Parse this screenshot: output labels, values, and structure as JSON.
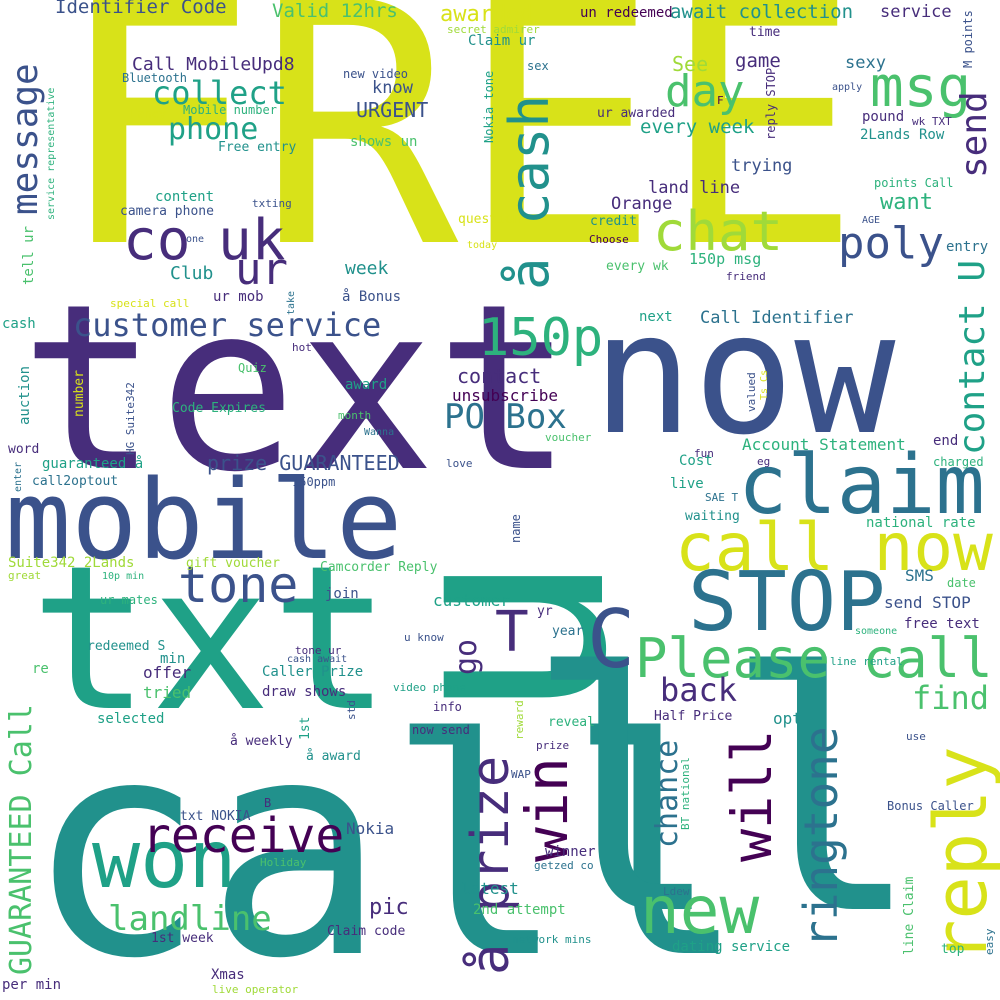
{
  "palette": {
    "yellow": "#d8e219",
    "lime": "#a0da39",
    "green": "#4ac16d",
    "mint": "#2db27d",
    "teal": "#1fa187",
    "sea": "#21918c",
    "blue": "#2c728e",
    "navy": "#3b528b",
    "indigo": "#472d7b",
    "purple": "#440154",
    "background": "#ffffff"
  },
  "words": [
    {
      "text": "FREE",
      "color": "yellow"
    },
    {
      "text": "text",
      "color": "indigo"
    },
    {
      "text": "now",
      "color": "navy"
    },
    {
      "text": "call",
      "color": "sea"
    },
    {
      "text": "txt",
      "color": "teal"
    },
    {
      "text": "u",
      "color": "teal"
    },
    {
      "text": "ll",
      "color": "sea"
    },
    {
      "text": "mobile",
      "color": "navy"
    },
    {
      "text": "claim",
      "color": "blue"
    },
    {
      "text": "call now",
      "color": "yellow"
    },
    {
      "text": "STOP",
      "color": "blue"
    },
    {
      "text": "Please call",
      "color": "green"
    },
    {
      "text": "won",
      "color": "teal"
    },
    {
      "text": "new",
      "color": "green"
    },
    {
      "text": "reply",
      "color": "yellow"
    },
    {
      "text": "ringtone",
      "color": "blue"
    },
    {
      "text": "will",
      "color": "purple"
    },
    {
      "text": "win",
      "color": "purple"
    },
    {
      "text": "å prize",
      "color": "indigo"
    },
    {
      "text": "receive",
      "color": "purple"
    },
    {
      "text": "tone",
      "color": "navy"
    },
    {
      "text": "T",
      "color": "indigo"
    },
    {
      "text": "C",
      "color": "navy"
    },
    {
      "text": "go",
      "color": "indigo"
    },
    {
      "text": "chat",
      "color": "lime"
    },
    {
      "text": "å cash",
      "color": "sea"
    },
    {
      "text": "co",
      "color": "indigo"
    },
    {
      "text": "uk",
      "color": "indigo"
    },
    {
      "text": "ur",
      "color": "indigo"
    },
    {
      "text": "msg",
      "color": "green"
    },
    {
      "text": "day",
      "color": "green"
    },
    {
      "text": "poly",
      "color": "navy"
    },
    {
      "text": "send",
      "color": "indigo"
    },
    {
      "text": "contact U",
      "color": "teal"
    },
    {
      "text": "150p",
      "color": "mint"
    },
    {
      "text": "PO Box",
      "color": "blue"
    },
    {
      "text": "customer service",
      "color": "navy"
    },
    {
      "text": "message",
      "color": "navy"
    },
    {
      "text": "collect",
      "color": "teal"
    },
    {
      "text": "phone",
      "color": "teal"
    },
    {
      "text": "landline",
      "color": "green"
    },
    {
      "text": "GUARANTEED Call",
      "color": "green"
    },
    {
      "text": "back",
      "color": "indigo"
    },
    {
      "text": "find",
      "color": "green"
    },
    {
      "text": "chance",
      "color": "blue"
    },
    {
      "text": "prize GUARANTEED",
      "color": "navy"
    },
    {
      "text": "Identifier Code",
      "color": "navy"
    },
    {
      "text": "Valid 12hrs",
      "color": "green"
    },
    {
      "text": "awarded",
      "color": "yellow"
    },
    {
      "text": "await collection",
      "color": "sea"
    },
    {
      "text": "service",
      "color": "indigo"
    },
    {
      "text": "un redeemed",
      "color": "purple"
    },
    {
      "text": "secret admirer",
      "color": "lime"
    },
    {
      "text": "Claim ur",
      "color": "sea"
    },
    {
      "text": "Call MobileUpd8",
      "color": "indigo"
    },
    {
      "text": "Bluetooth",
      "color": "blue"
    },
    {
      "text": "new video",
      "color": "navy"
    },
    {
      "text": "sex",
      "color": "blue"
    },
    {
      "text": "See",
      "color": "lime"
    },
    {
      "text": "game",
      "color": "indigo"
    },
    {
      "text": "sexy",
      "color": "blue"
    },
    {
      "text": "know",
      "color": "navy"
    },
    {
      "text": "URGENT",
      "color": "navy"
    },
    {
      "text": "Nokia tone",
      "color": "teal"
    },
    {
      "text": "Mobile number",
      "color": "mint"
    },
    {
      "text": "Fancy",
      "color": "yellow"
    },
    {
      "text": "Free entry",
      "color": "sea"
    },
    {
      "text": "shows un",
      "color": "green"
    },
    {
      "text": "ur awarded",
      "color": "indigo"
    },
    {
      "text": "every week",
      "color": "teal"
    },
    {
      "text": "F",
      "color": "purple"
    },
    {
      "text": "reply STOP",
      "color": "indigo"
    },
    {
      "text": "time",
      "color": "indigo"
    },
    {
      "text": "apply",
      "color": "navy"
    },
    {
      "text": "pound",
      "color": "indigo"
    },
    {
      "text": "wk TXT",
      "color": "indigo"
    },
    {
      "text": "M points",
      "color": "navy"
    },
    {
      "text": "2Lands Row",
      "color": "sea"
    },
    {
      "text": "trying",
      "color": "navy"
    },
    {
      "text": "content",
      "color": "teal"
    },
    {
      "text": "camera phone",
      "color": "navy"
    },
    {
      "text": "txting",
      "color": "navy"
    },
    {
      "text": "one",
      "color": "navy"
    },
    {
      "text": "land line",
      "color": "indigo"
    },
    {
      "text": "Orange",
      "color": "indigo"
    },
    {
      "text": "want",
      "color": "mint"
    },
    {
      "text": "points Call",
      "color": "mint"
    },
    {
      "text": "question",
      "color": "yellow"
    },
    {
      "text": "credit",
      "color": "sea"
    },
    {
      "text": "Choose",
      "color": "purple"
    },
    {
      "text": "AGE",
      "color": "navy"
    },
    {
      "text": "entry",
      "color": "blue"
    },
    {
      "text": "today",
      "color": "yellow"
    },
    {
      "text": "150p msg",
      "color": "mint"
    },
    {
      "text": "every wk",
      "color": "green"
    },
    {
      "text": "friend",
      "color": "indigo"
    },
    {
      "text": "Club",
      "color": "sea"
    },
    {
      "text": "week",
      "color": "sea"
    },
    {
      "text": "ur mob",
      "color": "indigo"
    },
    {
      "text": "å Bonus",
      "color": "navy"
    },
    {
      "text": "special call",
      "color": "yellow"
    },
    {
      "text": "take",
      "color": "blue"
    },
    {
      "text": "tell ur",
      "color": "green"
    },
    {
      "text": "service representative",
      "color": "mint"
    },
    {
      "text": "cash",
      "color": "teal"
    },
    {
      "text": "next",
      "color": "teal"
    },
    {
      "text": "Call Identifier",
      "color": "blue"
    },
    {
      "text": "hot",
      "color": "indigo"
    },
    {
      "text": "contact",
      "color": "indigo"
    },
    {
      "text": "unsubscribe",
      "color": "purple"
    },
    {
      "text": "Quiz",
      "color": "green"
    },
    {
      "text": "award",
      "color": "teal"
    },
    {
      "text": "month",
      "color": "green"
    },
    {
      "text": "Code Expires",
      "color": "mint"
    },
    {
      "text": "HG Suite342",
      "color": "navy"
    },
    {
      "text": "auction",
      "color": "sea"
    },
    {
      "text": "number",
      "color": "yellow"
    },
    {
      "text": "valued",
      "color": "navy"
    },
    {
      "text": "Ts Cs",
      "color": "yellow"
    },
    {
      "text": "Wanna",
      "color": "blue"
    },
    {
      "text": "voucher",
      "color": "green"
    },
    {
      "text": "Account Statement",
      "color": "mint"
    },
    {
      "text": "end",
      "color": "indigo"
    },
    {
      "text": "word",
      "color": "indigo"
    },
    {
      "text": "guaranteed å",
      "color": "teal"
    },
    {
      "text": "love",
      "color": "navy"
    },
    {
      "text": "fun",
      "color": "indigo"
    },
    {
      "text": "eg",
      "color": "indigo"
    },
    {
      "text": "charged",
      "color": "mint"
    },
    {
      "text": "Cost",
      "color": "teal"
    },
    {
      "text": "enter",
      "color": "blue"
    },
    {
      "text": "call2optout",
      "color": "blue"
    },
    {
      "text": "150ppm",
      "color": "navy"
    },
    {
      "text": "live",
      "color": "teal"
    },
    {
      "text": "SAE T",
      "color": "blue"
    },
    {
      "text": "waiting",
      "color": "sea"
    },
    {
      "text": "national rate",
      "color": "mint"
    },
    {
      "text": "name",
      "color": "navy"
    },
    {
      "text": "Suite342 2Lands",
      "color": "lime"
    },
    {
      "text": "gift voucher",
      "color": "lime"
    },
    {
      "text": "Camcorder Reply",
      "color": "green"
    },
    {
      "text": "great",
      "color": "lime"
    },
    {
      "text": "10p min",
      "color": "mint"
    },
    {
      "text": "SMS",
      "color": "blue"
    },
    {
      "text": "ur mates",
      "color": "mint"
    },
    {
      "text": "join",
      "color": "navy"
    },
    {
      "text": "customer",
      "color": "teal"
    },
    {
      "text": "yr",
      "color": "indigo"
    },
    {
      "text": "send STOP",
      "color": "navy"
    },
    {
      "text": "date",
      "color": "green"
    },
    {
      "text": "free text",
      "color": "indigo"
    },
    {
      "text": "u know",
      "color": "navy"
    },
    {
      "text": "someone",
      "color": "mint"
    },
    {
      "text": "redeemed S",
      "color": "sea"
    },
    {
      "text": "tone ur",
      "color": "indigo"
    },
    {
      "text": "cash await",
      "color": "navy"
    },
    {
      "text": "year",
      "color": "blue"
    },
    {
      "text": "line rental",
      "color": "teal"
    },
    {
      "text": "re",
      "color": "green"
    },
    {
      "text": "min",
      "color": "sea"
    },
    {
      "text": "offer",
      "color": "indigo"
    },
    {
      "text": "Caller Prize",
      "color": "sea"
    },
    {
      "text": "tried",
      "color": "green"
    },
    {
      "text": "draw shows",
      "color": "indigo"
    },
    {
      "text": "video phone",
      "color": "teal"
    },
    {
      "text": "std",
      "color": "navy"
    },
    {
      "text": "info",
      "color": "indigo"
    },
    {
      "text": "reward",
      "color": "lime"
    },
    {
      "text": "opt",
      "color": "sea"
    },
    {
      "text": "selected",
      "color": "teal"
    },
    {
      "text": "1st",
      "color": "teal"
    },
    {
      "text": "reveal",
      "color": "mint"
    },
    {
      "text": "Half Price",
      "color": "indigo"
    },
    {
      "text": "now send",
      "color": "indigo"
    },
    {
      "text": "use",
      "color": "navy"
    },
    {
      "text": "prize",
      "color": "indigo"
    },
    {
      "text": "å weekly",
      "color": "indigo"
    },
    {
      "text": "å award",
      "color": "sea"
    },
    {
      "text": "WAP",
      "color": "navy"
    },
    {
      "text": "BT national",
      "color": "mint"
    },
    {
      "text": "B",
      "color": "indigo"
    },
    {
      "text": "txt NOKIA",
      "color": "navy"
    },
    {
      "text": "Nokia",
      "color": "navy"
    },
    {
      "text": "Bonus Caller",
      "color": "navy"
    },
    {
      "text": "Holiday",
      "color": "green"
    },
    {
      "text": "winner",
      "color": "indigo"
    },
    {
      "text": "getzed co",
      "color": "blue"
    },
    {
      "text": "line Claim",
      "color": "green"
    },
    {
      "text": "latest",
      "color": "sea"
    },
    {
      "text": "pic",
      "color": "indigo"
    },
    {
      "text": "2nd attempt",
      "color": "green"
    },
    {
      "text": "Ldew",
      "color": "blue"
    },
    {
      "text": "Claim code",
      "color": "indigo"
    },
    {
      "text": "1st week",
      "color": "indigo"
    },
    {
      "text": "network mins",
      "color": "sea"
    },
    {
      "text": "dating service",
      "color": "teal"
    },
    {
      "text": "easy",
      "color": "blue"
    },
    {
      "text": "top",
      "color": "mint"
    },
    {
      "text": "Xmas",
      "color": "indigo"
    },
    {
      "text": "per min",
      "color": "indigo"
    },
    {
      "text": "live operator",
      "color": "lime"
    }
  ]
}
